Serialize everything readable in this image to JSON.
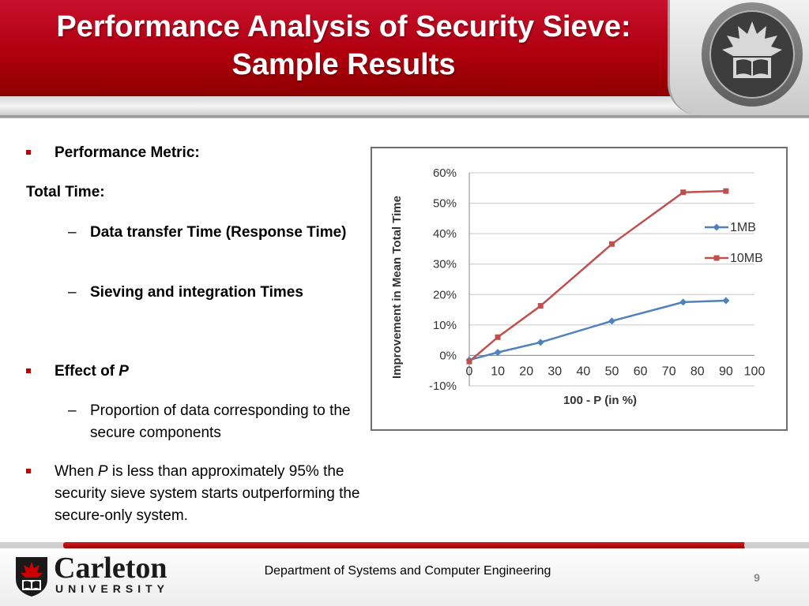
{
  "slide": {
    "title": "Performance Analysis of Security Sieve: Sample Results"
  },
  "content": {
    "bullet1": "Performance Metric:",
    "total_time": "Total Time:",
    "sub1": "Data transfer Time (Response Time)",
    "sub2": "Sieving and integration Times",
    "bullet2_prefix": "Effect of ",
    "bullet2_var": "P",
    "sub3": "Proportion of data corresponding to the secure components",
    "bullet3_prefix": "When ",
    "bullet3_var": "P",
    "bullet3_suffix": " is less than approximately 95% the security sieve system starts outperforming the secure-only system.",
    "dash": "–"
  },
  "footer": {
    "department": "Department of Systems and Computer Engineering",
    "page_number": "9",
    "logo_word": "Carleton",
    "logo_sub": "UNIVERSITY"
  },
  "chart_data": {
    "type": "line",
    "xlabel": "100 - P (in %)",
    "ylabel": "Improvement in Mean Total Time",
    "x_ticks": [
      "0",
      "10",
      "20",
      "30",
      "40",
      "50",
      "60",
      "70",
      "80",
      "90",
      "100"
    ],
    "y_ticks": [
      "60%",
      "50%",
      "40%",
      "30%",
      "20%",
      "10%",
      "0%",
      "-10%"
    ],
    "xlim": [
      0,
      100
    ],
    "ylim": [
      -10,
      60
    ],
    "legend_position": "right",
    "grid": true,
    "series": [
      {
        "name": "1MB",
        "color": "#4f81bd",
        "marker": "diamond",
        "x": [
          0,
          10,
          25,
          50,
          75,
          90
        ],
        "y": [
          -1.5,
          1,
          4.3,
          11.3,
          17.5,
          18
        ]
      },
      {
        "name": "10MB",
        "color": "#c0504d",
        "marker": "square",
        "x": [
          0,
          10,
          25,
          50,
          75,
          90
        ],
        "y": [
          -2,
          6,
          16.3,
          36.6,
          53.6,
          54
        ]
      }
    ]
  }
}
